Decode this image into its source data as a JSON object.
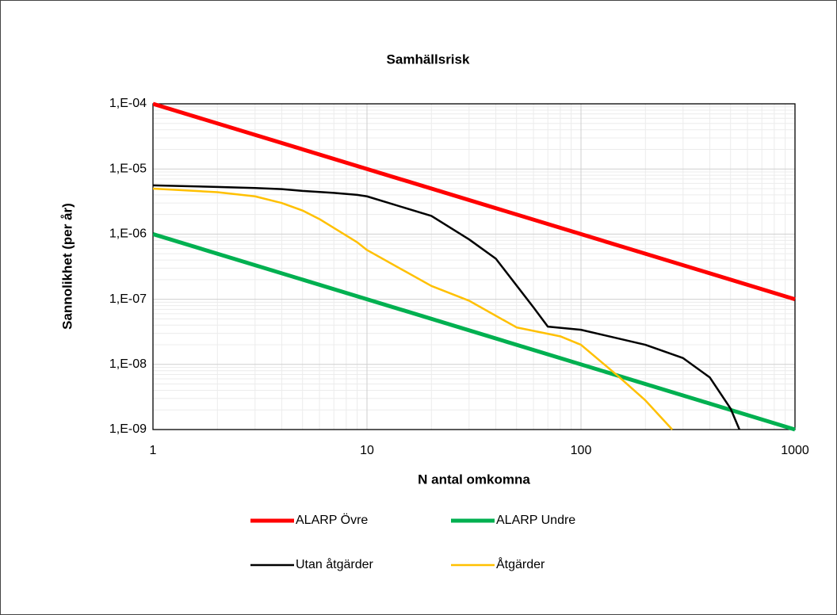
{
  "chart_data": {
    "type": "line",
    "title": "Samhällsrisk",
    "x_label": "N antal omkomna",
    "y_label": "Sannolikhet (per år)",
    "xscale": "log",
    "yscale": "log",
    "grid": true,
    "minor_grid": true,
    "legend": "bottom",
    "xlim": [
      1,
      1000
    ],
    "xticks": [
      1,
      10,
      100,
      1000
    ],
    "ylim": [
      1e-09,
      0.0001
    ],
    "yticks": [
      {
        "value": 1e-09,
        "label": "1,E-09"
      },
      {
        "value": 1e-08,
        "label": "1,E-08"
      },
      {
        "value": 1e-07,
        "label": "1,E-07"
      },
      {
        "value": 1e-06,
        "label": "1,E-06"
      },
      {
        "value": 1e-05,
        "label": "1,E-05"
      },
      {
        "value": 0.0001,
        "label": "1,E-04"
      }
    ],
    "series": [
      {
        "name": "ALARP Övre",
        "color": "#ff0000",
        "x": [
          1,
          1000
        ],
        "values": [
          0.0001,
          1e-07
        ]
      },
      {
        "name": "ALARP Undre",
        "color": "#00b050",
        "x": [
          1,
          1000
        ],
        "values": [
          1e-06,
          1e-09
        ]
      },
      {
        "name": "Utan åtgärder",
        "color": "#000000",
        "x": [
          1,
          2,
          3,
          4,
          5,
          7,
          9,
          10,
          20,
          30,
          40,
          60,
          70,
          100,
          200,
          300,
          400,
          500,
          550
        ],
        "values": [
          5.6e-06,
          5.3e-06,
          5.1e-06,
          4.9e-06,
          4.6e-06,
          4.3e-06,
          4e-06,
          3.8e-06,
          1.9e-06,
          8.3e-07,
          4.2e-07,
          7.5e-08,
          3.8e-08,
          3.4e-08,
          2e-08,
          1.25e-08,
          6.3e-09,
          2.1e-09,
          1e-09
        ]
      },
      {
        "name": "Åtgärder",
        "color": "#ffc000",
        "x": [
          1,
          2,
          3,
          4,
          5,
          6,
          8,
          9,
          10,
          20,
          30,
          50,
          80,
          100,
          150,
          200,
          267
        ],
        "values": [
          5e-06,
          4.4e-06,
          3.8e-06,
          3e-06,
          2.3e-06,
          1.7e-06,
          9.5e-07,
          7.5e-07,
          5.7e-07,
          1.6e-07,
          9.5e-08,
          3.7e-08,
          2.7e-08,
          2e-08,
          6.5e-09,
          2.8e-09,
          1e-09
        ]
      }
    ]
  }
}
